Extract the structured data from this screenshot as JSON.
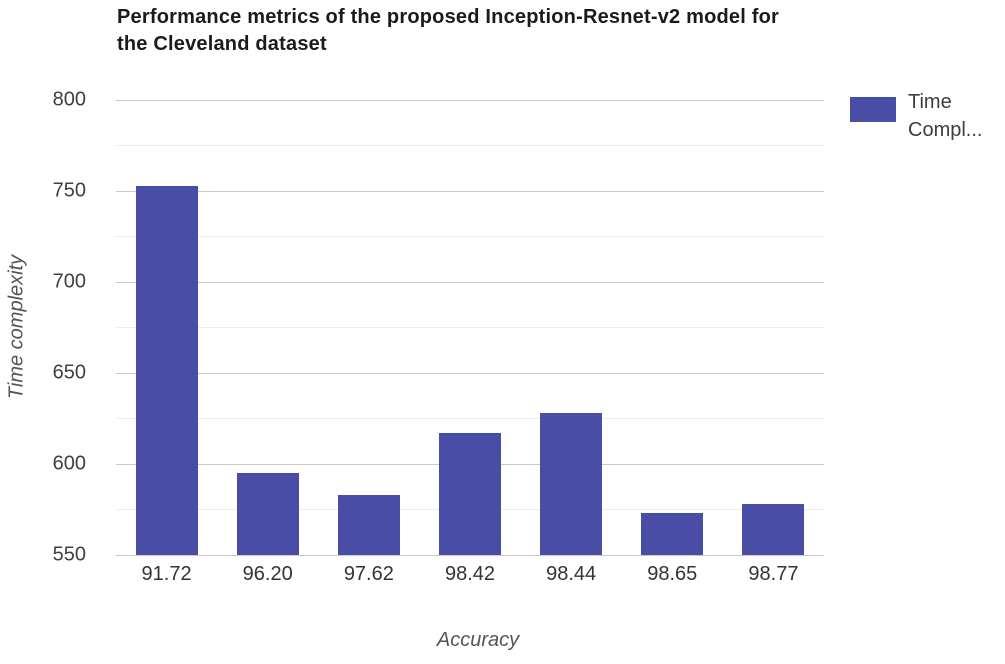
{
  "chart_data": {
    "type": "bar",
    "title": "Performance metrics of the proposed Inception-Resnet-v2 model for the Cleveland dataset",
    "xlabel": "Accuracy",
    "ylabel": "Time complexity",
    "categories": [
      "91.72",
      "96.20",
      "97.62",
      "98.42",
      "98.44",
      "98.65",
      "98.77"
    ],
    "series": [
      {
        "name": "Time Compl...",
        "values": [
          753,
          595,
          583,
          617,
          628,
          573,
          578
        ]
      }
    ],
    "ylim": [
      550,
      800
    ],
    "y_major_ticks": [
      550,
      600,
      650,
      700,
      750,
      800
    ],
    "y_minor_ticks": [
      575,
      625,
      675,
      725,
      775
    ],
    "grid": true,
    "legend_position": "right",
    "bar_color": "#4A4DA6"
  },
  "legend": {
    "label": "Time Compl..."
  },
  "colors": {
    "bar": "#4A4DA6",
    "grid_major": "#c9c9c9",
    "grid_minor": "#ededed"
  }
}
